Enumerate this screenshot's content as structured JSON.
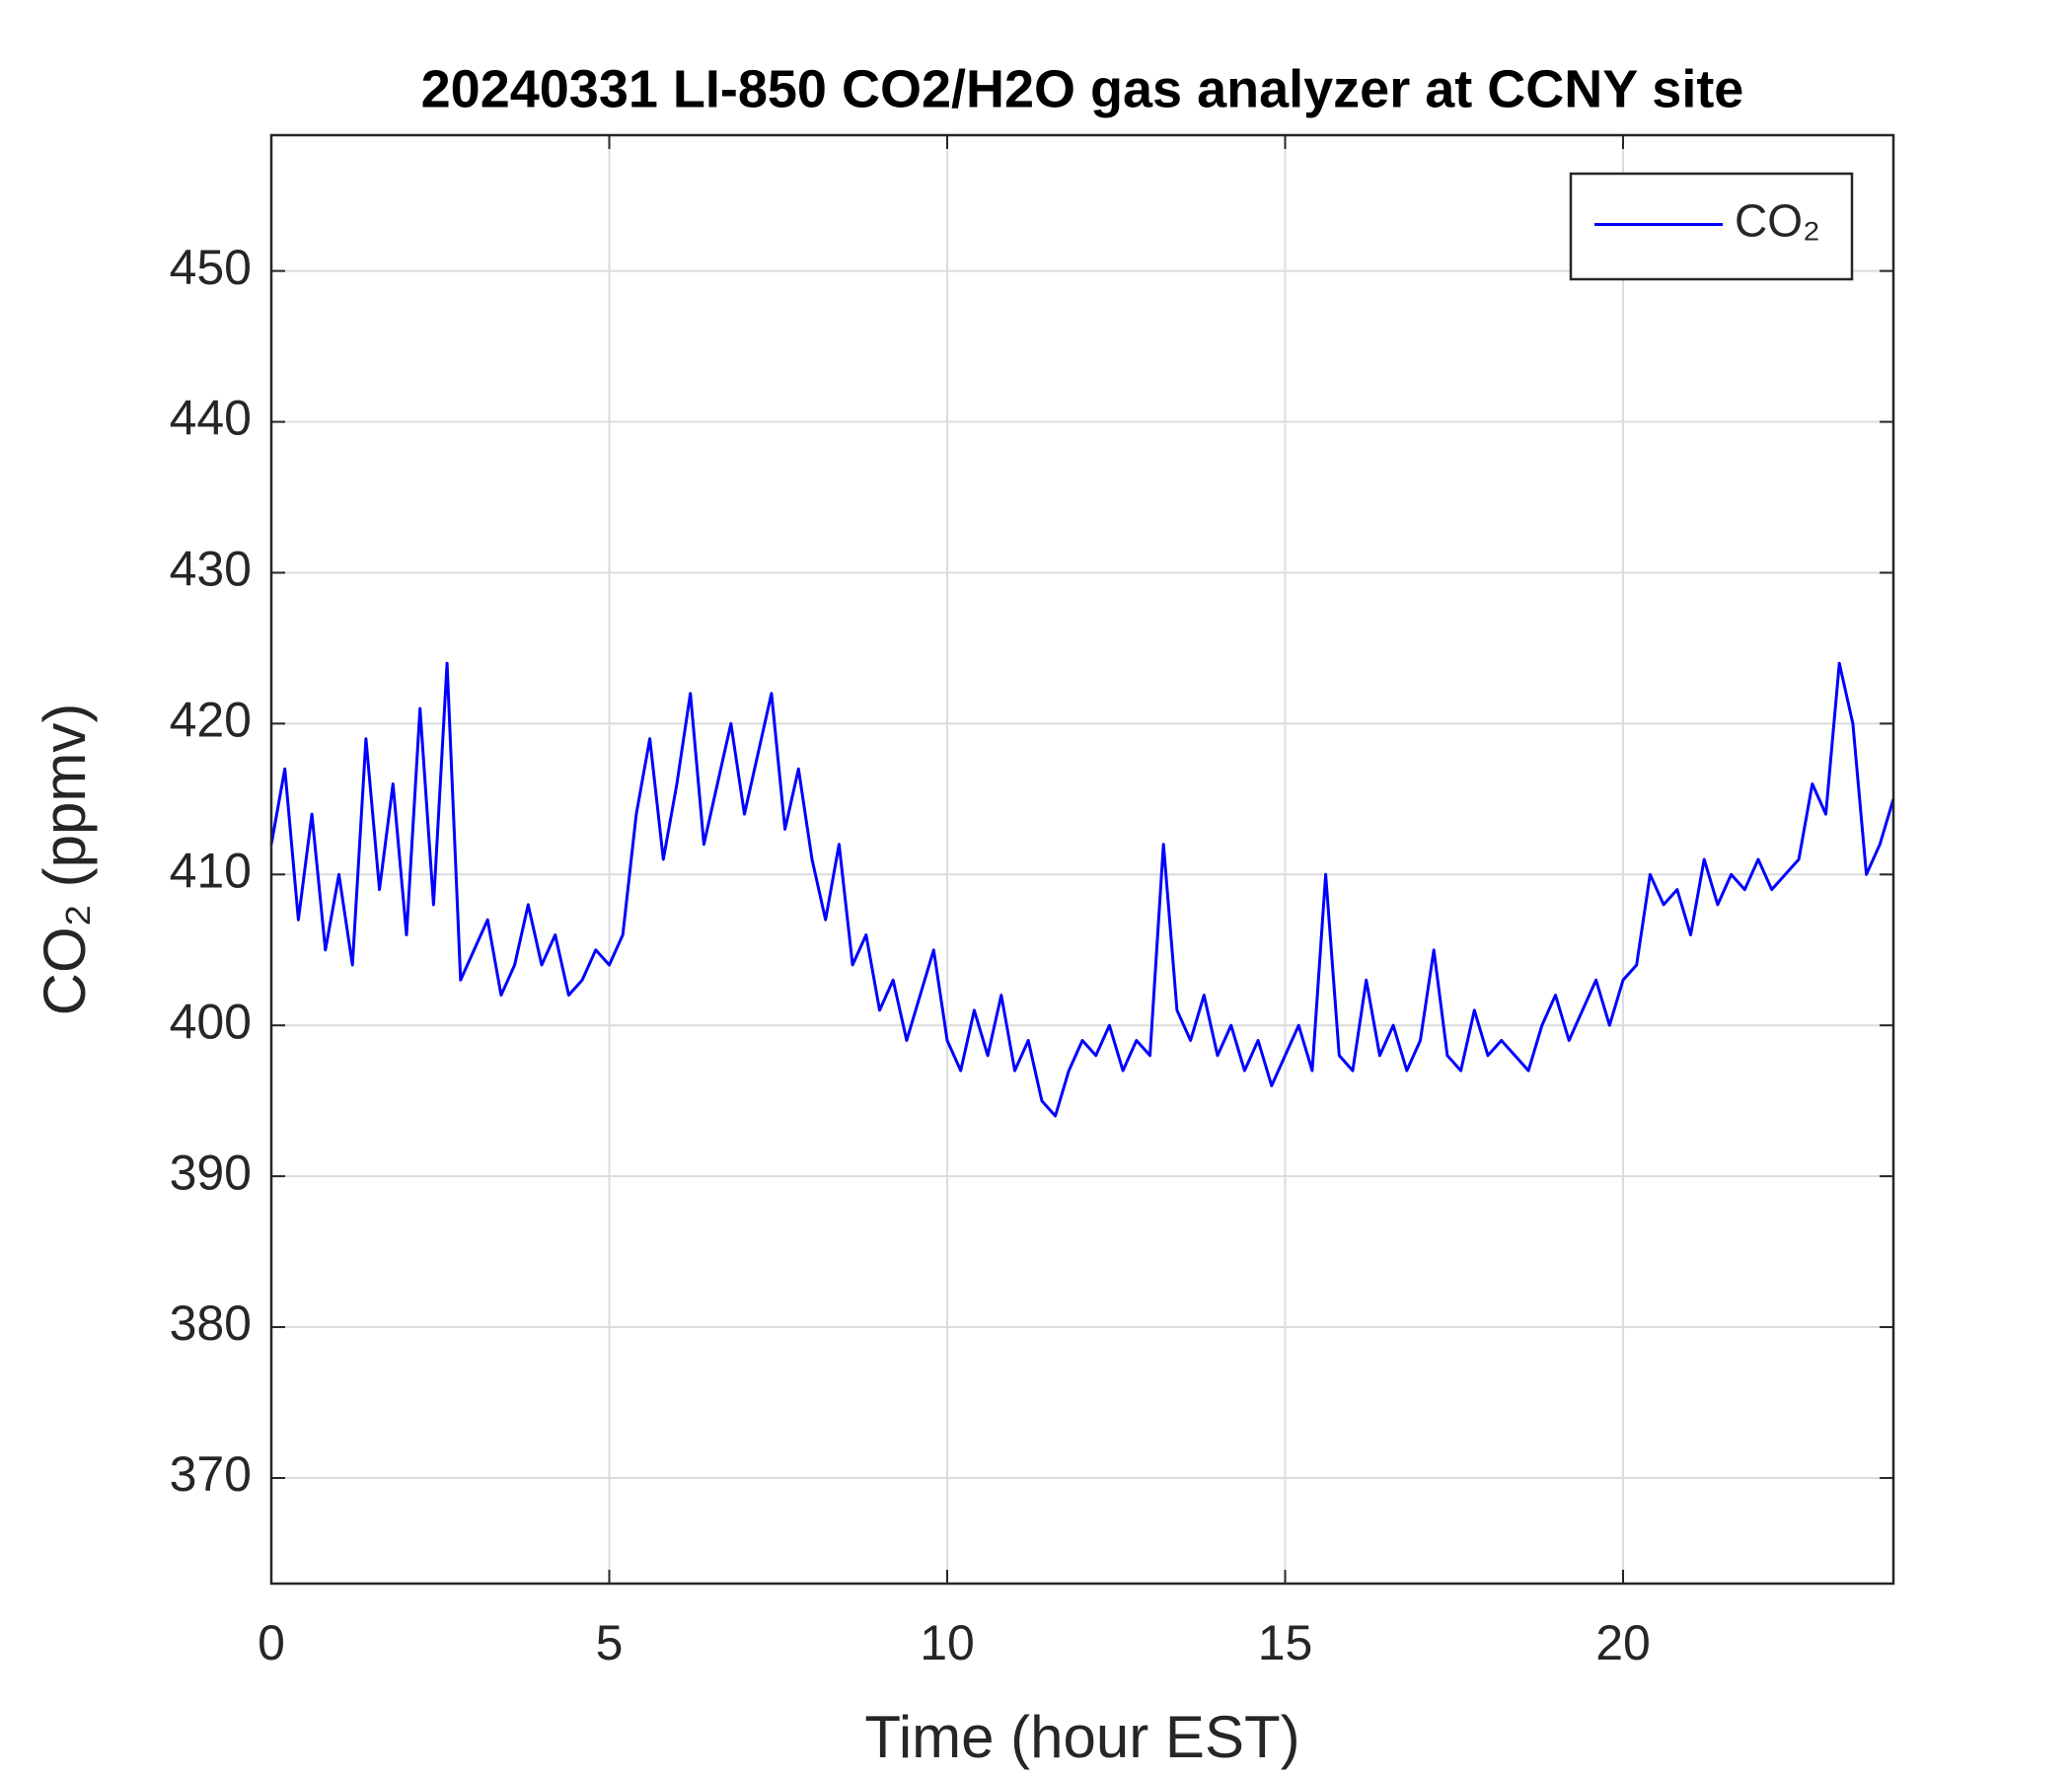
{
  "chart_data": {
    "type": "line",
    "title": "20240331 LI-850 CO2/H2O gas analyzer at CCNY site",
    "x_label": "Time (hour EST)",
    "y_label": "CO₂ (ppmv)",
    "xlim": [
      0,
      24
    ],
    "xticks": [
      0,
      5,
      10,
      15,
      20
    ],
    "ylim": [
      363,
      459
    ],
    "yticks": [
      370,
      380,
      390,
      400,
      410,
      420,
      430,
      440,
      450
    ],
    "grid": true,
    "legend": "upper right",
    "x": [
      0,
      0.2,
      0.4,
      0.6,
      0.8,
      1,
      1.2,
      1.4,
      1.6,
      1.8,
      2,
      2.2,
      2.4,
      2.6,
      2.8,
      3,
      3.2,
      3.4,
      3.6,
      3.8,
      4,
      4.2,
      4.4,
      4.6,
      4.8,
      5,
      5.2,
      5.4,
      5.6,
      5.8,
      6,
      6.2,
      6.4,
      6.6,
      6.8,
      7,
      7.2,
      7.4,
      7.6,
      7.8,
      8,
      8.2,
      8.4,
      8.6,
      8.8,
      9,
      9.2,
      9.4,
      9.6,
      9.8,
      10,
      10.2,
      10.4,
      10.6,
      10.8,
      11,
      11.2,
      11.4,
      11.6,
      11.8,
      12,
      12.2,
      12.4,
      12.6,
      12.8,
      13,
      13.2,
      13.4,
      13.6,
      13.8,
      14,
      14.2,
      14.4,
      14.6,
      14.8,
      15,
      15.2,
      15.4,
      15.6,
      15.8,
      16,
      16.2,
      16.4,
      16.6,
      16.8,
      17,
      17.2,
      17.4,
      17.6,
      17.8,
      18,
      18.2,
      18.4,
      18.6,
      18.8,
      19,
      19.2,
      19.4,
      19.6,
      19.8,
      20,
      20.2,
      20.4,
      20.6,
      20.8,
      21,
      21.2,
      21.4,
      21.6,
      21.8,
      22,
      22.2,
      22.4,
      22.6,
      22.8,
      23,
      23.2,
      23.4,
      23.6,
      23.8,
      24
    ],
    "series": [
      {
        "name": "CO₂",
        "color": "#0000ff",
        "values": [
          412,
          417,
          407,
          414,
          405,
          410,
          404,
          419,
          409,
          416,
          406,
          421,
          408,
          424,
          403,
          405,
          407,
          402,
          404,
          408,
          404,
          406,
          402,
          403,
          405,
          404,
          406,
          414,
          419,
          411,
          416,
          422,
          412,
          416,
          420,
          414,
          418,
          422,
          413,
          417,
          411,
          407,
          412,
          404,
          406,
          401,
          403,
          399,
          402,
          405,
          399,
          397,
          401,
          398,
          402,
          397,
          399,
          395,
          394,
          397,
          399,
          398,
          400,
          397,
          399,
          398,
          412,
          401,
          399,
          402,
          398,
          400,
          397,
          399,
          396,
          398,
          400,
          397,
          410,
          398,
          397,
          403,
          398,
          400,
          397,
          399,
          405,
          398,
          397,
          401,
          398,
          399,
          398,
          397,
          400,
          402,
          399,
          401,
          403,
          400,
          403,
          404,
          410,
          408,
          409,
          406,
          411,
          408,
          410,
          409,
          411,
          409,
          410,
          411,
          416,
          414,
          424,
          420,
          410,
          412,
          415
        ]
      }
    ]
  }
}
